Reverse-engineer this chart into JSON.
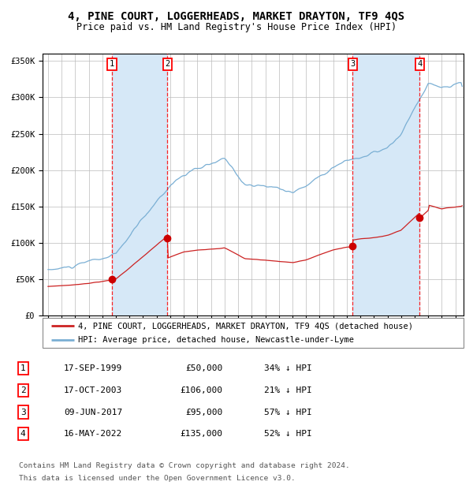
{
  "title": "4, PINE COURT, LOGGERHEADS, MARKET DRAYTON, TF9 4QS",
  "subtitle": "Price paid vs. HM Land Registry's House Price Index (HPI)",
  "ylim": [
    0,
    360000
  ],
  "yticks": [
    0,
    50000,
    100000,
    150000,
    200000,
    250000,
    300000,
    350000
  ],
  "ytick_labels": [
    "£0",
    "£50K",
    "£100K",
    "£150K",
    "£200K",
    "£250K",
    "£300K",
    "£350K"
  ],
  "xlim_start": 1994.6,
  "xlim_end": 2025.6,
  "background_color": "#ffffff",
  "plot_bg_color": "#ffffff",
  "grid_color": "#bbbbbb",
  "shade_color": "#d6e8f7",
  "transactions": [
    {
      "num": 1,
      "date": "17-SEP-1999",
      "price": 50000,
      "year": 1999.71,
      "hpi_pct": "34% ↓ HPI"
    },
    {
      "num": 2,
      "date": "17-OCT-2003",
      "price": 106000,
      "year": 2003.79,
      "hpi_pct": "21% ↓ HPI"
    },
    {
      "num": 3,
      "date": "09-JUN-2017",
      "price": 95000,
      "year": 2017.44,
      "hpi_pct": "57% ↓ HPI"
    },
    {
      "num": 4,
      "date": "16-MAY-2022",
      "price": 135000,
      "year": 2022.37,
      "hpi_pct": "52% ↓ HPI"
    }
  ],
  "hpi_line_color": "#7aafd4",
  "price_line_color": "#cc2222",
  "dot_color": "#cc0000",
  "legend_line1": "4, PINE COURT, LOGGERHEADS, MARKET DRAYTON, TF9 4QS (detached house)",
  "legend_line2": "HPI: Average price, detached house, Newcastle-under-Lyme",
  "footer1": "Contains HM Land Registry data © Crown copyright and database right 2024.",
  "footer2": "This data is licensed under the Open Government Licence v3.0.",
  "title_fontsize": 10,
  "subtitle_fontsize": 8.5,
  "axis_fontsize": 7.5,
  "legend_fontsize": 7.5,
  "table_fontsize": 8
}
